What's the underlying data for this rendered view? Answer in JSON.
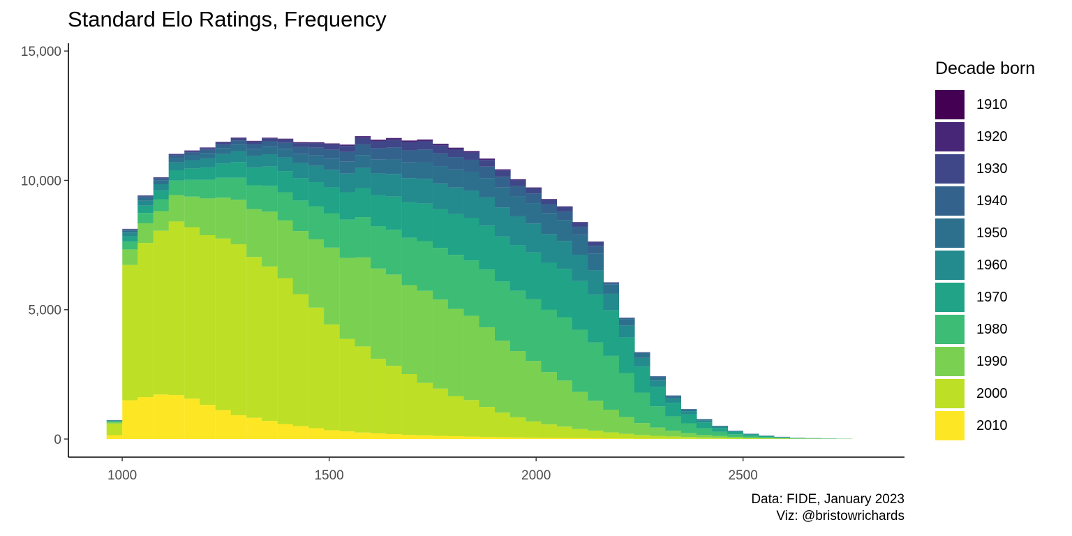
{
  "chart_data": {
    "type": "bar",
    "title": "Standard Elo Ratings, Frequency",
    "xlabel": "",
    "ylabel": "",
    "stacked": true,
    "x_axis": {
      "range": [
        870,
        2890
      ],
      "ticks": [
        1000,
        1500,
        2000,
        2500
      ],
      "tick_labels": [
        "1000",
        "1500",
        "2000",
        "2500"
      ]
    },
    "y_axis": {
      "range": [
        -700,
        15300
      ],
      "ticks": [
        0,
        5000,
        10000,
        15000
      ],
      "tick_labels": [
        "0",
        "5,000",
        "10,000",
        "15,000"
      ]
    },
    "grid": false,
    "bin_width": 37.5,
    "x": [
      981,
      1019,
      1056,
      1094,
      1131,
      1169,
      1206,
      1244,
      1281,
      1319,
      1356,
      1394,
      1431,
      1469,
      1506,
      1544,
      1581,
      1619,
      1656,
      1694,
      1731,
      1769,
      1806,
      1844,
      1881,
      1919,
      1956,
      1994,
      2031,
      2069,
      2106,
      2144,
      2181,
      2219,
      2256,
      2294,
      2331,
      2369,
      2406,
      2444,
      2481,
      2519,
      2556,
      2594,
      2631,
      2669,
      2706,
      2744
    ],
    "legend": {
      "title": "Decade born",
      "position": "right"
    },
    "series": [
      {
        "name": "2010",
        "color": "#FDE725",
        "values": [
          150,
          1500,
          1620,
          1720,
          1700,
          1560,
          1320,
          1120,
          920,
          820,
          700,
          580,
          500,
          420,
          340,
          300,
          250,
          220,
          190,
          160,
          140,
          120,
          110,
          95,
          80,
          70,
          60,
          50,
          45,
          40,
          35,
          30,
          25,
          20,
          15,
          12,
          10,
          8,
          6,
          5,
          4,
          3,
          2,
          2,
          1,
          1,
          1,
          1
        ]
      },
      {
        "name": "2000",
        "color": "#BDDF26",
        "values": [
          450,
          5230,
          5960,
          6330,
          6710,
          6630,
          6560,
          6630,
          6610,
          6220,
          5970,
          5640,
          5100,
          4660,
          4090,
          3570,
          3330,
          2880,
          2640,
          2350,
          2030,
          1830,
          1550,
          1410,
          1160,
          950,
          780,
          630,
          520,
          440,
          350,
          290,
          230,
          180,
          140,
          110,
          90,
          70,
          55,
          45,
          35,
          25,
          20,
          15,
          10,
          8,
          5,
          4
        ]
      },
      {
        "name": "1990",
        "color": "#7AD151",
        "values": [
          50,
          600,
          760,
          760,
          1020,
          1180,
          1420,
          1580,
          1720,
          1850,
          2120,
          2230,
          2440,
          2640,
          2970,
          3130,
          3440,
          3490,
          3530,
          3440,
          3560,
          3440,
          3370,
          3260,
          3080,
          2780,
          2560,
          2340,
          2020,
          1780,
          1440,
          1160,
          880,
          650,
          460,
          320,
          220,
          150,
          100,
          70,
          45,
          30,
          20,
          15,
          10,
          6,
          4,
          3
        ]
      },
      {
        "name": "1980",
        "color": "#3CBC75",
        "values": [
          30,
          300,
          400,
          460,
          560,
          650,
          720,
          770,
          850,
          920,
          1000,
          1090,
          1180,
          1280,
          1330,
          1480,
          1560,
          1640,
          1730,
          1830,
          1920,
          2000,
          2090,
          2140,
          2230,
          2290,
          2330,
          2390,
          2410,
          2450,
          2400,
          2250,
          2080,
          1700,
          1180,
          820,
          560,
          380,
          250,
          160,
          100,
          60,
          35,
          20,
          12,
          8,
          5,
          3
        ]
      },
      {
        "name": "1970",
        "color": "#20A386",
        "values": [
          20,
          200,
          280,
          340,
          400,
          440,
          480,
          540,
          610,
          680,
          740,
          820,
          870,
          930,
          1000,
          1060,
          1120,
          1200,
          1280,
          1380,
          1450,
          1500,
          1580,
          1650,
          1700,
          1740,
          1770,
          1800,
          1820,
          1870,
          1880,
          1850,
          1760,
          1380,
          1010,
          760,
          520,
          350,
          230,
          150,
          90,
          55,
          35,
          20,
          12,
          8,
          5,
          3
        ]
      },
      {
        "name": "1960",
        "color": "#238A8D",
        "values": [
          15,
          150,
          190,
          240,
          300,
          320,
          350,
          380,
          420,
          450,
          480,
          530,
          580,
          630,
          680,
          720,
          780,
          840,
          880,
          930,
          960,
          990,
          1020,
          1050,
          1090,
          1120,
          1110,
          1120,
          1110,
          1080,
          1020,
          940,
          640,
          450,
          330,
          240,
          170,
          120,
          80,
          50,
          30,
          20,
          12,
          8,
          5,
          3,
          2,
          1
        ]
      },
      {
        "name": "1950",
        "color": "#2D708E",
        "values": [
          10,
          80,
          110,
          140,
          170,
          190,
          210,
          230,
          250,
          280,
          300,
          330,
          360,
          400,
          430,
          460,
          500,
          530,
          570,
          600,
          640,
          670,
          700,
          730,
          750,
          770,
          780,
          790,
          800,
          810,
          760,
          650,
          370,
          260,
          190,
          140,
          100,
          70,
          45,
          30,
          18,
          12,
          8,
          5,
          3,
          2,
          1,
          1
        ]
      },
      {
        "name": "1940",
        "color": "#33638D",
        "values": [
          5,
          40,
          60,
          80,
          100,
          110,
          120,
          140,
          160,
          180,
          200,
          230,
          260,
          300,
          340,
          380,
          410,
          430,
          450,
          470,
          490,
          490,
          480,
          460,
          440,
          420,
          390,
          370,
          340,
          330,
          320,
          300,
          50,
          35,
          25,
          18,
          12,
          8,
          5,
          3,
          2,
          1,
          1,
          1,
          0,
          0,
          0,
          0
        ]
      },
      {
        "name": "1930",
        "color": "#3F4788",
        "values": [
          2,
          20,
          30,
          40,
          50,
          60,
          70,
          80,
          90,
          100,
          110,
          130,
          150,
          170,
          200,
          230,
          260,
          280,
          300,
          310,
          320,
          310,
          300,
          280,
          260,
          240,
          220,
          200,
          180,
          170,
          160,
          150,
          20,
          15,
          10,
          7,
          5,
          3,
          2,
          1,
          1,
          0,
          0,
          0,
          0,
          0,
          0,
          0
        ]
      },
      {
        "name": "1920",
        "color": "#482677",
        "values": [
          1,
          5,
          8,
          10,
          12,
          15,
          18,
          20,
          22,
          25,
          28,
          30,
          35,
          40,
          45,
          50,
          55,
          60,
          62,
          65,
          65,
          62,
          60,
          55,
          50,
          45,
          40,
          35,
          30,
          25,
          20,
          15,
          5,
          3,
          2,
          1,
          1,
          0,
          0,
          0,
          0,
          0,
          0,
          0,
          0,
          0,
          0,
          0
        ]
      },
      {
        "name": "1910",
        "color": "#440154",
        "values": [
          0,
          1,
          1,
          1,
          1,
          2,
          2,
          2,
          2,
          3,
          3,
          3,
          4,
          4,
          5,
          5,
          6,
          6,
          6,
          6,
          6,
          5,
          5,
          5,
          4,
          4,
          3,
          3,
          3,
          2,
          2,
          2,
          1,
          1,
          0,
          0,
          0,
          0,
          0,
          0,
          0,
          0,
          0,
          0,
          0,
          0,
          0,
          0
        ]
      }
    ],
    "caption": [
      "Data: FIDE, January 2023",
      "Viz: @bristowrichards"
    ]
  }
}
